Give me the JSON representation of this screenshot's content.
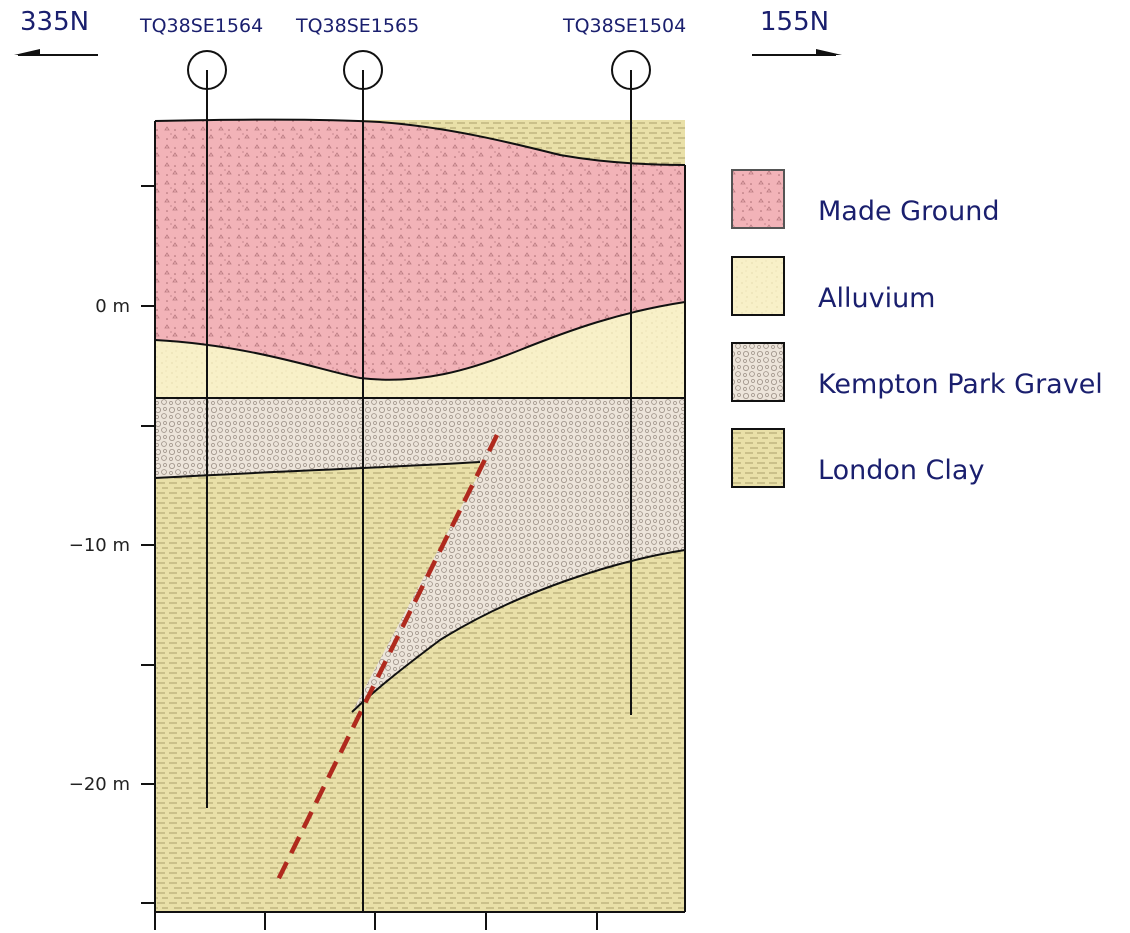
{
  "direction": {
    "left": "335N",
    "right": "155N"
  },
  "boreholes": [
    {
      "id": "TQ38SE1564"
    },
    {
      "id": "TQ38SE1565"
    },
    {
      "id": "TQ38SE1504"
    }
  ],
  "depth_axis": {
    "labels": [
      "0 m",
      "−10 m",
      "−20 m"
    ]
  },
  "legend": [
    {
      "label": "Made Ground",
      "color": "#f2b3b8"
    },
    {
      "label": "Alluvium",
      "color": "#f8f0c8"
    },
    {
      "label": "Kempton Park Gravel",
      "color": "#ece4da"
    },
    {
      "label": "London Clay",
      "color": "#e9e0a8"
    }
  ],
  "colors": {
    "fault": "#b02a1e",
    "text": "#1a1f6e"
  }
}
